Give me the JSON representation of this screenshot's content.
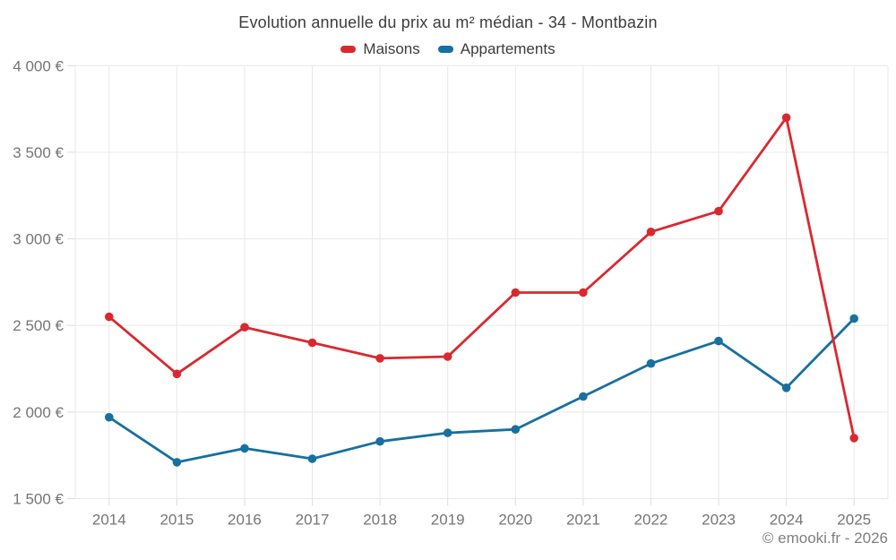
{
  "footer": {
    "text": "© emooki.fr - 2026"
  },
  "palette": {
    "grid": "#e8e8e8",
    "tick": "#dcdcdc",
    "axis_text": "#757575",
    "title_text": "#3d3d3d",
    "footer_text": "#7f7f7f",
    "background": "#ffffff"
  },
  "chart_data": {
    "type": "line",
    "title": "Evolution annuelle du prix au m² médian - 34 - Montbazin",
    "categories": [
      "2014",
      "2015",
      "2016",
      "2017",
      "2018",
      "2019",
      "2020",
      "2021",
      "2022",
      "2023",
      "2024",
      "2025"
    ],
    "series": [
      {
        "name": "Maisons",
        "color": "#d9292f",
        "marker": "circle",
        "values": [
          2550,
          2220,
          2490,
          2400,
          2310,
          2320,
          2690,
          2690,
          3040,
          3160,
          3700,
          1850
        ]
      },
      {
        "name": "Appartements",
        "color": "#17709f",
        "marker": "circle",
        "values": [
          1970,
          1710,
          1790,
          1730,
          1830,
          1880,
          1900,
          2090,
          2280,
          2410,
          2140,
          2540
        ]
      }
    ],
    "xlabel": "",
    "ylabel": "",
    "ylim": [
      1500,
      4000
    ],
    "y_ticks": [
      1500,
      2000,
      2500,
      3000,
      3500,
      4000
    ],
    "y_tick_labels": [
      "1 500 €",
      "2 000 €",
      "2 500 €",
      "3 000 €",
      "3 500 €",
      "4 000 €"
    ],
    "grid": true,
    "legend_position": "top"
  }
}
